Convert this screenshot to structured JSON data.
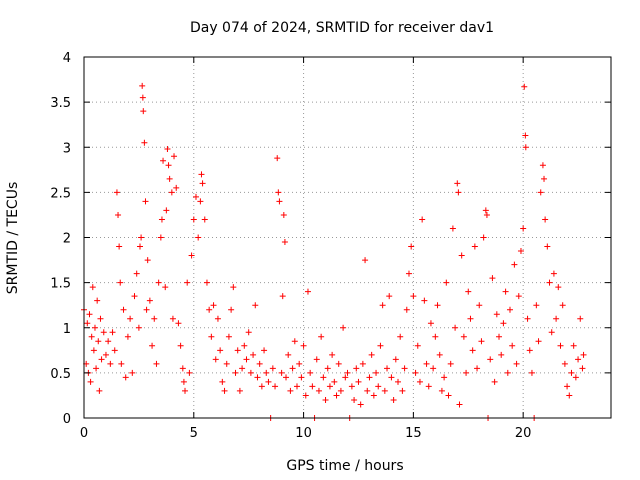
{
  "chart_data": {
    "type": "scatter",
    "title": "Day 074 of 2024, SRMTID for receiver dav1",
    "xlabel": "GPS time / hours",
    "ylabel": "SRMTID / TECUs",
    "xlim": [
      0,
      24
    ],
    "ylim": [
      0,
      4
    ],
    "xticks": [
      0,
      5,
      10,
      15,
      20
    ],
    "xtick_labels": [
      "0",
      "5",
      "10",
      "15",
      "20"
    ],
    "yticks": [
      0,
      0.5,
      1,
      1.5,
      2,
      2.5,
      3,
      3.5,
      4
    ],
    "ytick_labels": [
      "0",
      "0.5",
      "1",
      "1.5",
      "2",
      "2.5",
      "3",
      "3.5",
      "4"
    ],
    "grid": true,
    "marker": "+",
    "series": [
      {
        "name": "SRMTID",
        "color": "#ff0000",
        "points": [
          [
            0.0,
            1.2
          ],
          [
            0.1,
            0.6
          ],
          [
            0.15,
            1.05
          ],
          [
            0.2,
            0.5
          ],
          [
            0.25,
            1.15
          ],
          [
            0.3,
            0.4
          ],
          [
            0.35,
            0.9
          ],
          [
            0.4,
            1.45
          ],
          [
            0.45,
            0.75
          ],
          [
            0.5,
            1.0
          ],
          [
            0.55,
            0.55
          ],
          [
            0.6,
            1.3
          ],
          [
            0.65,
            0.85
          ],
          [
            0.7,
            0.3
          ],
          [
            0.75,
            1.1
          ],
          [
            0.8,
            0.65
          ],
          [
            0.9,
            0.95
          ],
          [
            1.0,
            0.7
          ],
          [
            1.1,
            0.85
          ],
          [
            1.2,
            0.6
          ],
          [
            1.3,
            0.95
          ],
          [
            1.4,
            0.75
          ],
          [
            1.5,
            2.5
          ],
          [
            1.55,
            2.25
          ],
          [
            1.6,
            1.9
          ],
          [
            1.65,
            1.5
          ],
          [
            1.7,
            0.6
          ],
          [
            1.8,
            1.2
          ],
          [
            1.9,
            0.45
          ],
          [
            2.0,
            0.9
          ],
          [
            2.1,
            1.1
          ],
          [
            2.2,
            0.5
          ],
          [
            2.3,
            1.35
          ],
          [
            2.4,
            1.6
          ],
          [
            2.5,
            1.0
          ],
          [
            2.55,
            1.9
          ],
          [
            2.6,
            2.0
          ],
          [
            2.65,
            3.68
          ],
          [
            2.68,
            3.55
          ],
          [
            2.7,
            3.4
          ],
          [
            2.75,
            3.05
          ],
          [
            2.8,
            2.4
          ],
          [
            2.85,
            1.2
          ],
          [
            2.9,
            1.75
          ],
          [
            3.0,
            1.3
          ],
          [
            3.1,
            0.8
          ],
          [
            3.2,
            1.1
          ],
          [
            3.3,
            0.6
          ],
          [
            3.4,
            1.5
          ],
          [
            3.5,
            2.0
          ],
          [
            3.55,
            2.2
          ],
          [
            3.6,
            2.85
          ],
          [
            3.7,
            1.45
          ],
          [
            3.75,
            2.3
          ],
          [
            3.8,
            2.98
          ],
          [
            3.85,
            2.8
          ],
          [
            3.9,
            2.65
          ],
          [
            4.0,
            2.5
          ],
          [
            4.05,
            1.1
          ],
          [
            4.1,
            2.9
          ],
          [
            4.2,
            2.55
          ],
          [
            4.3,
            1.05
          ],
          [
            4.4,
            0.8
          ],
          [
            4.5,
            0.55
          ],
          [
            4.55,
            0.4
          ],
          [
            4.6,
            0.3
          ],
          [
            4.7,
            1.5
          ],
          [
            4.8,
            0.5
          ],
          [
            4.9,
            1.8
          ],
          [
            5.0,
            2.2
          ],
          [
            5.1,
            2.45
          ],
          [
            5.2,
            2.0
          ],
          [
            5.3,
            2.4
          ],
          [
            5.35,
            2.7
          ],
          [
            5.4,
            2.6
          ],
          [
            5.5,
            2.2
          ],
          [
            5.6,
            1.5
          ],
          [
            5.7,
            1.2
          ],
          [
            5.8,
            0.9
          ],
          [
            5.9,
            1.25
          ],
          [
            6.0,
            0.65
          ],
          [
            6.1,
            1.1
          ],
          [
            6.2,
            0.75
          ],
          [
            6.3,
            0.4
          ],
          [
            6.4,
            0.3
          ],
          [
            6.5,
            0.6
          ],
          [
            6.6,
            0.9
          ],
          [
            6.7,
            1.2
          ],
          [
            6.8,
            1.45
          ],
          [
            6.9,
            0.5
          ],
          [
            7.0,
            0.75
          ],
          [
            7.1,
            0.3
          ],
          [
            7.2,
            0.55
          ],
          [
            7.3,
            0.8
          ],
          [
            7.4,
            0.65
          ],
          [
            7.5,
            0.95
          ],
          [
            7.6,
            0.5
          ],
          [
            7.7,
            0.7
          ],
          [
            7.8,
            1.25
          ],
          [
            7.9,
            0.45
          ],
          [
            8.0,
            0.6
          ],
          [
            8.1,
            0.35
          ],
          [
            8.2,
            0.75
          ],
          [
            8.3,
            0.5
          ],
          [
            8.4,
            0.4
          ],
          [
            8.5,
            0.0
          ],
          [
            8.6,
            0.55
          ],
          [
            8.7,
            0.35
          ],
          [
            8.8,
            2.88
          ],
          [
            8.85,
            2.5
          ],
          [
            8.9,
            2.4
          ],
          [
            9.0,
            0.5
          ],
          [
            9.05,
            1.35
          ],
          [
            9.1,
            2.25
          ],
          [
            9.15,
            1.95
          ],
          [
            9.2,
            0.45
          ],
          [
            9.3,
            0.7
          ],
          [
            9.4,
            0.3
          ],
          [
            9.5,
            0.55
          ],
          [
            9.6,
            0.85
          ],
          [
            9.7,
            0.35
          ],
          [
            9.8,
            0.6
          ],
          [
            9.9,
            0.45
          ],
          [
            10.0,
            0.8
          ],
          [
            10.1,
            0.25
          ],
          [
            10.2,
            1.4
          ],
          [
            10.3,
            0.5
          ],
          [
            10.4,
            0.35
          ],
          [
            10.5,
            0.0
          ],
          [
            10.6,
            0.65
          ],
          [
            10.7,
            0.3
          ],
          [
            10.8,
            0.9
          ],
          [
            10.9,
            0.45
          ],
          [
            11.0,
            0.2
          ],
          [
            11.1,
            0.55
          ],
          [
            11.2,
            0.35
          ],
          [
            11.3,
            0.7
          ],
          [
            11.4,
            0.4
          ],
          [
            11.5,
            0.25
          ],
          [
            11.6,
            0.6
          ],
          [
            11.7,
            0.3
          ],
          [
            11.8,
            1.0
          ],
          [
            11.9,
            0.45
          ],
          [
            12.0,
            0.5
          ],
          [
            12.1,
            0.0
          ],
          [
            12.2,
            0.35
          ],
          [
            12.3,
            0.2
          ],
          [
            12.4,
            0.55
          ],
          [
            12.5,
            0.4
          ],
          [
            12.6,
            0.15
          ],
          [
            12.7,
            0.6
          ],
          [
            12.8,
            1.75
          ],
          [
            12.9,
            0.3
          ],
          [
            13.0,
            0.45
          ],
          [
            13.1,
            0.7
          ],
          [
            13.2,
            0.25
          ],
          [
            13.3,
            0.5
          ],
          [
            13.4,
            0.35
          ],
          [
            13.5,
            0.8
          ],
          [
            13.6,
            1.25
          ],
          [
            13.7,
            0.3
          ],
          [
            13.8,
            0.55
          ],
          [
            13.9,
            1.35
          ],
          [
            14.0,
            0.45
          ],
          [
            14.1,
            0.2
          ],
          [
            14.2,
            0.65
          ],
          [
            14.3,
            0.4
          ],
          [
            14.4,
            0.9
          ],
          [
            14.5,
            0.3
          ],
          [
            14.6,
            0.55
          ],
          [
            14.7,
            1.2
          ],
          [
            14.8,
            1.6
          ],
          [
            14.9,
            1.9
          ],
          [
            15.0,
            1.35
          ],
          [
            15.1,
            0.5
          ],
          [
            15.2,
            0.8
          ],
          [
            15.3,
            0.4
          ],
          [
            15.4,
            2.2
          ],
          [
            15.5,
            1.3
          ],
          [
            15.6,
            0.6
          ],
          [
            15.7,
            0.35
          ],
          [
            15.8,
            1.05
          ],
          [
            15.9,
            0.55
          ],
          [
            16.0,
            0.9
          ],
          [
            16.1,
            1.25
          ],
          [
            16.2,
            0.7
          ],
          [
            16.3,
            0.3
          ],
          [
            16.4,
            0.45
          ],
          [
            16.5,
            1.5
          ],
          [
            16.6,
            0.25
          ],
          [
            16.7,
            0.6
          ],
          [
            16.8,
            2.1
          ],
          [
            16.9,
            1.0
          ],
          [
            17.0,
            2.6
          ],
          [
            17.05,
            2.5
          ],
          [
            17.1,
            0.15
          ],
          [
            17.2,
            1.8
          ],
          [
            17.3,
            0.9
          ],
          [
            17.4,
            0.5
          ],
          [
            17.5,
            1.4
          ],
          [
            17.6,
            1.1
          ],
          [
            17.7,
            0.75
          ],
          [
            17.8,
            1.9
          ],
          [
            17.9,
            0.55
          ],
          [
            18.0,
            1.25
          ],
          [
            18.1,
            0.85
          ],
          [
            18.2,
            2.0
          ],
          [
            18.3,
            2.3
          ],
          [
            18.35,
            2.25
          ],
          [
            18.4,
            0.0
          ],
          [
            18.5,
            0.65
          ],
          [
            18.6,
            1.55
          ],
          [
            18.7,
            0.4
          ],
          [
            18.8,
            1.15
          ],
          [
            18.9,
            0.9
          ],
          [
            19.0,
            0.7
          ],
          [
            19.1,
            1.05
          ],
          [
            19.2,
            1.4
          ],
          [
            19.3,
            0.5
          ],
          [
            19.4,
            1.2
          ],
          [
            19.5,
            0.8
          ],
          [
            19.6,
            1.7
          ],
          [
            19.7,
            0.6
          ],
          [
            19.8,
            1.35
          ],
          [
            19.9,
            1.85
          ],
          [
            20.0,
            2.1
          ],
          [
            20.05,
            3.67
          ],
          [
            20.1,
            3.13
          ],
          [
            20.12,
            3.0
          ],
          [
            20.2,
            1.1
          ],
          [
            20.3,
            0.75
          ],
          [
            20.4,
            0.5
          ],
          [
            20.5,
            0.0
          ],
          [
            20.6,
            1.25
          ],
          [
            20.7,
            0.85
          ],
          [
            20.8,
            2.5
          ],
          [
            20.9,
            2.8
          ],
          [
            20.95,
            2.65
          ],
          [
            21.0,
            2.2
          ],
          [
            21.1,
            1.9
          ],
          [
            21.2,
            1.5
          ],
          [
            21.3,
            0.95
          ],
          [
            21.4,
            1.6
          ],
          [
            21.5,
            1.1
          ],
          [
            21.6,
            1.45
          ],
          [
            21.7,
            0.8
          ],
          [
            21.8,
            1.25
          ],
          [
            21.9,
            0.6
          ],
          [
            22.0,
            0.35
          ],
          [
            22.1,
            0.25
          ],
          [
            22.2,
            0.5
          ],
          [
            22.3,
            0.8
          ],
          [
            22.4,
            0.45
          ],
          [
            22.5,
            0.65
          ],
          [
            22.6,
            1.1
          ],
          [
            22.7,
            0.55
          ],
          [
            22.75,
            0.7
          ]
        ]
      }
    ]
  }
}
